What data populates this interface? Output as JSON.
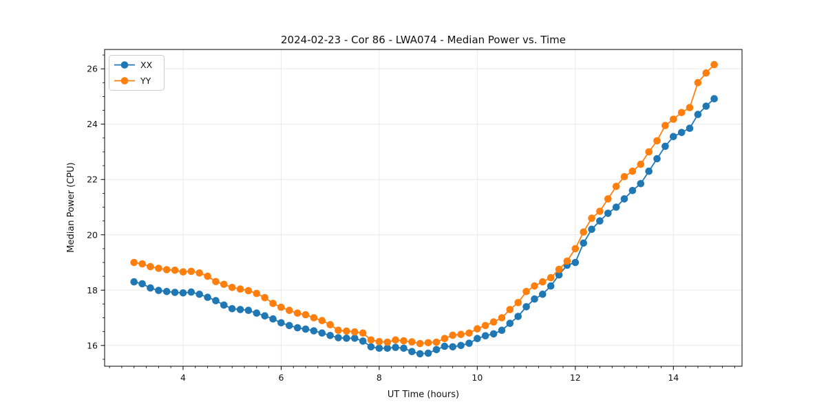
{
  "figure": {
    "background": "#ffffff"
  },
  "chart_data": {
    "type": "line",
    "title": "2024-02-23 - Cor 86 - LWA074 - Median Power vs. Time",
    "xlabel": "UT Time (hours)",
    "ylabel": "Median Power (CPU)",
    "xlim": [
      2.4,
      15.4
    ],
    "ylim": [
      15.25,
      26.7
    ],
    "xticks": [
      4,
      6,
      8,
      10,
      12,
      14
    ],
    "yticks": [
      16,
      18,
      20,
      22,
      24,
      26
    ],
    "minor_xtick_step": 0.25,
    "minor_ytick_step": 0.5,
    "grid": true,
    "grid_color": "#e8e8e8",
    "spine_color": "#000000",
    "legend_position": "upper-left",
    "x": [
      3.0,
      3.1667,
      3.3333,
      3.5,
      3.6667,
      3.8333,
      4.0,
      4.1667,
      4.3333,
      4.5,
      4.6667,
      4.8333,
      5.0,
      5.1667,
      5.3333,
      5.5,
      5.6667,
      5.8333,
      6.0,
      6.1667,
      6.3333,
      6.5,
      6.6667,
      6.8333,
      7.0,
      7.1667,
      7.3333,
      7.5,
      7.6667,
      7.8333,
      8.0,
      8.1667,
      8.3333,
      8.5,
      8.6667,
      8.8333,
      9.0,
      9.1667,
      9.3333,
      9.5,
      9.6667,
      9.8333,
      10.0,
      10.1667,
      10.3333,
      10.5,
      10.6667,
      10.8333,
      11.0,
      11.1667,
      11.3333,
      11.5,
      11.6667,
      11.8333,
      12.0,
      12.1667,
      12.3333,
      12.5,
      12.6667,
      12.8333,
      13.0,
      13.1667,
      13.3333,
      13.5,
      13.6667,
      13.8333,
      14.0,
      14.1667,
      14.3333,
      14.5,
      14.6667,
      14.8333
    ],
    "series": [
      {
        "name": "XX",
        "color": "#1f77b4",
        "marker": "circle",
        "values": [
          18.3,
          18.23,
          18.08,
          17.99,
          17.95,
          17.92,
          17.9,
          17.93,
          17.85,
          17.74,
          17.62,
          17.46,
          17.33,
          17.3,
          17.27,
          17.17,
          17.07,
          16.96,
          16.82,
          16.72,
          16.64,
          16.59,
          16.53,
          16.45,
          16.36,
          16.28,
          16.26,
          16.26,
          16.16,
          15.95,
          15.9,
          15.9,
          15.93,
          15.9,
          15.78,
          15.7,
          15.72,
          15.85,
          15.97,
          15.95,
          16.0,
          16.08,
          16.25,
          16.35,
          16.42,
          16.55,
          16.8,
          17.05,
          17.4,
          17.68,
          17.85,
          18.15,
          18.55,
          18.9,
          19.0,
          19.7,
          20.2,
          20.5,
          20.78,
          21.0,
          21.3,
          21.6,
          21.85,
          22.3,
          22.75,
          23.2,
          23.55,
          23.7,
          23.85,
          24.35,
          24.65,
          24.92
        ]
      },
      {
        "name": "YY",
        "color": "#ff7f0e",
        "marker": "circle",
        "values": [
          19.0,
          18.95,
          18.85,
          18.79,
          18.74,
          18.72,
          18.66,
          18.68,
          18.62,
          18.5,
          18.31,
          18.21,
          18.1,
          18.04,
          17.98,
          17.88,
          17.73,
          17.52,
          17.38,
          17.27,
          17.17,
          17.11,
          17.0,
          16.9,
          16.75,
          16.55,
          16.52,
          16.49,
          16.45,
          16.2,
          16.14,
          16.12,
          16.2,
          16.17,
          16.13,
          16.07,
          16.1,
          16.12,
          16.25,
          16.37,
          16.4,
          16.45,
          16.6,
          16.72,
          16.85,
          17.0,
          17.3,
          17.55,
          17.95,
          18.15,
          18.3,
          18.45,
          18.75,
          19.05,
          19.5,
          20.1,
          20.6,
          20.85,
          21.3,
          21.75,
          22.1,
          22.3,
          22.55,
          23.0,
          23.4,
          23.95,
          24.18,
          24.42,
          24.6,
          25.5,
          25.85,
          26.15
        ]
      }
    ]
  }
}
